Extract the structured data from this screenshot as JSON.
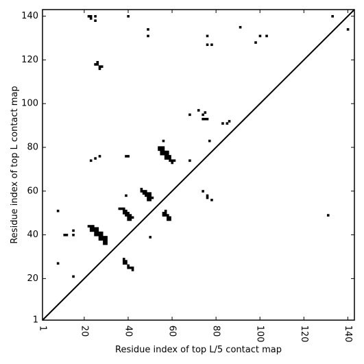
{
  "chart_data": {
    "type": "scatter",
    "title": "",
    "xlabel": "Residue index of top L/5 contact map",
    "ylabel": "Residue index of top L contact map",
    "xlim": [
      1,
      143
    ],
    "ylim": [
      1,
      143
    ],
    "x_ticks": [
      1,
      20,
      40,
      60,
      80,
      100,
      120,
      140
    ],
    "y_ticks": [
      1,
      20,
      40,
      60,
      80,
      100,
      120,
      140
    ],
    "grid": false,
    "legend": "none",
    "marker": "square",
    "marker_color": "#000000",
    "diagonal_line": {
      "from": [
        1,
        1
      ],
      "to": [
        143,
        143
      ],
      "color": "#000000"
    },
    "upper_left_points": [
      [
        22,
        140
      ],
      [
        23,
        140
      ],
      [
        23,
        139
      ],
      [
        25,
        140
      ],
      [
        25,
        138
      ],
      [
        40,
        140
      ],
      [
        49,
        134
      ],
      [
        49,
        131
      ],
      [
        76,
        131
      ],
      [
        76,
        127
      ],
      [
        78,
        127
      ],
      [
        91,
        135
      ],
      [
        100,
        131
      ],
      [
        103,
        131
      ],
      [
        98,
        128
      ],
      [
        133,
        140
      ],
      [
        140,
        134
      ],
      [
        25,
        118
      ],
      [
        26,
        118
      ],
      [
        26,
        119
      ],
      [
        27,
        117
      ],
      [
        27,
        116
      ],
      [
        28,
        117
      ],
      [
        68,
        95
      ],
      [
        72,
        97
      ],
      [
        74,
        95
      ],
      [
        75,
        96
      ],
      [
        74,
        93
      ],
      [
        75,
        93
      ],
      [
        76,
        93
      ],
      [
        83,
        91
      ],
      [
        85,
        91
      ],
      [
        86,
        92
      ],
      [
        56,
        83
      ],
      [
        77,
        83
      ],
      [
        54,
        80
      ],
      [
        55,
        80
      ],
      [
        56,
        80
      ],
      [
        54,
        79
      ],
      [
        55,
        79
      ],
      [
        56,
        79
      ],
      [
        55,
        78
      ],
      [
        56,
        78
      ],
      [
        57,
        78
      ],
      [
        58,
        78
      ],
      [
        55,
        77
      ],
      [
        56,
        77
      ],
      [
        57,
        77
      ],
      [
        58,
        77
      ],
      [
        57,
        76
      ],
      [
        58,
        76
      ],
      [
        59,
        76
      ],
      [
        57,
        75
      ],
      [
        58,
        75
      ],
      [
        59,
        75
      ],
      [
        59,
        74
      ],
      [
        60,
        74
      ],
      [
        61,
        74
      ],
      [
        60,
        73
      ],
      [
        27,
        76
      ],
      [
        25,
        75
      ],
      [
        23,
        74
      ],
      [
        39,
        76
      ],
      [
        40,
        76
      ],
      [
        68,
        74
      ],
      [
        46,
        61
      ],
      [
        46,
        60
      ],
      [
        47,
        60
      ],
      [
        48,
        60
      ],
      [
        47,
        59
      ],
      [
        48,
        59
      ],
      [
        49,
        59
      ],
      [
        50,
        59
      ],
      [
        48,
        58
      ],
      [
        49,
        58
      ],
      [
        50,
        58
      ],
      [
        49,
        57
      ],
      [
        50,
        57
      ],
      [
        51,
        57
      ],
      [
        49,
        56
      ],
      [
        50,
        56
      ],
      [
        39,
        58
      ],
      [
        74,
        60
      ],
      [
        76,
        58
      ],
      [
        76,
        57
      ],
      [
        78,
        56
      ],
      [
        8,
        51
      ],
      [
        36,
        52
      ],
      [
        37,
        52
      ],
      [
        38,
        52
      ],
      [
        38,
        51
      ],
      [
        39,
        51
      ],
      [
        38,
        50
      ],
      [
        39,
        50
      ],
      [
        40,
        50
      ],
      [
        39,
        49
      ],
      [
        40,
        49
      ],
      [
        41,
        49
      ],
      [
        40,
        48
      ],
      [
        41,
        48
      ],
      [
        42,
        48
      ],
      [
        40,
        47
      ],
      [
        41,
        47
      ],
      [
        57,
        51
      ],
      [
        56,
        50
      ],
      [
        57,
        50
      ],
      [
        56,
        49
      ],
      [
        57,
        49
      ],
      [
        58,
        49
      ],
      [
        58,
        48
      ],
      [
        59,
        48
      ],
      [
        58,
        47
      ],
      [
        59,
        47
      ],
      [
        131,
        49
      ],
      [
        22,
        44
      ],
      [
        23,
        44
      ],
      [
        24,
        44
      ],
      [
        23,
        43
      ],
      [
        24,
        43
      ],
      [
        25,
        43
      ],
      [
        26,
        43
      ],
      [
        23,
        42
      ],
      [
        24,
        42
      ],
      [
        25,
        42
      ],
      [
        26,
        42
      ],
      [
        15,
        42
      ],
      [
        25,
        41
      ],
      [
        26,
        41
      ],
      [
        27,
        41
      ],
      [
        28,
        41
      ],
      [
        25,
        40
      ],
      [
        26,
        40
      ],
      [
        27,
        40
      ],
      [
        28,
        40
      ],
      [
        11,
        40
      ],
      [
        12,
        40
      ],
      [
        15,
        40
      ],
      [
        27,
        39
      ],
      [
        28,
        39
      ],
      [
        29,
        39
      ],
      [
        30,
        39
      ],
      [
        27,
        38
      ],
      [
        28,
        38
      ],
      [
        29,
        38
      ],
      [
        30,
        38
      ],
      [
        29,
        37
      ],
      [
        30,
        37
      ],
      [
        29,
        36
      ],
      [
        30,
        36
      ],
      [
        50,
        39
      ],
      [
        38,
        29
      ],
      [
        38,
        28
      ],
      [
        39,
        28
      ],
      [
        38,
        27
      ],
      [
        39,
        27
      ],
      [
        8,
        27
      ],
      [
        40,
        26
      ],
      [
        40,
        25
      ],
      [
        41,
        25
      ],
      [
        42,
        25
      ],
      [
        42,
        24
      ],
      [
        15,
        21
      ]
    ]
  }
}
